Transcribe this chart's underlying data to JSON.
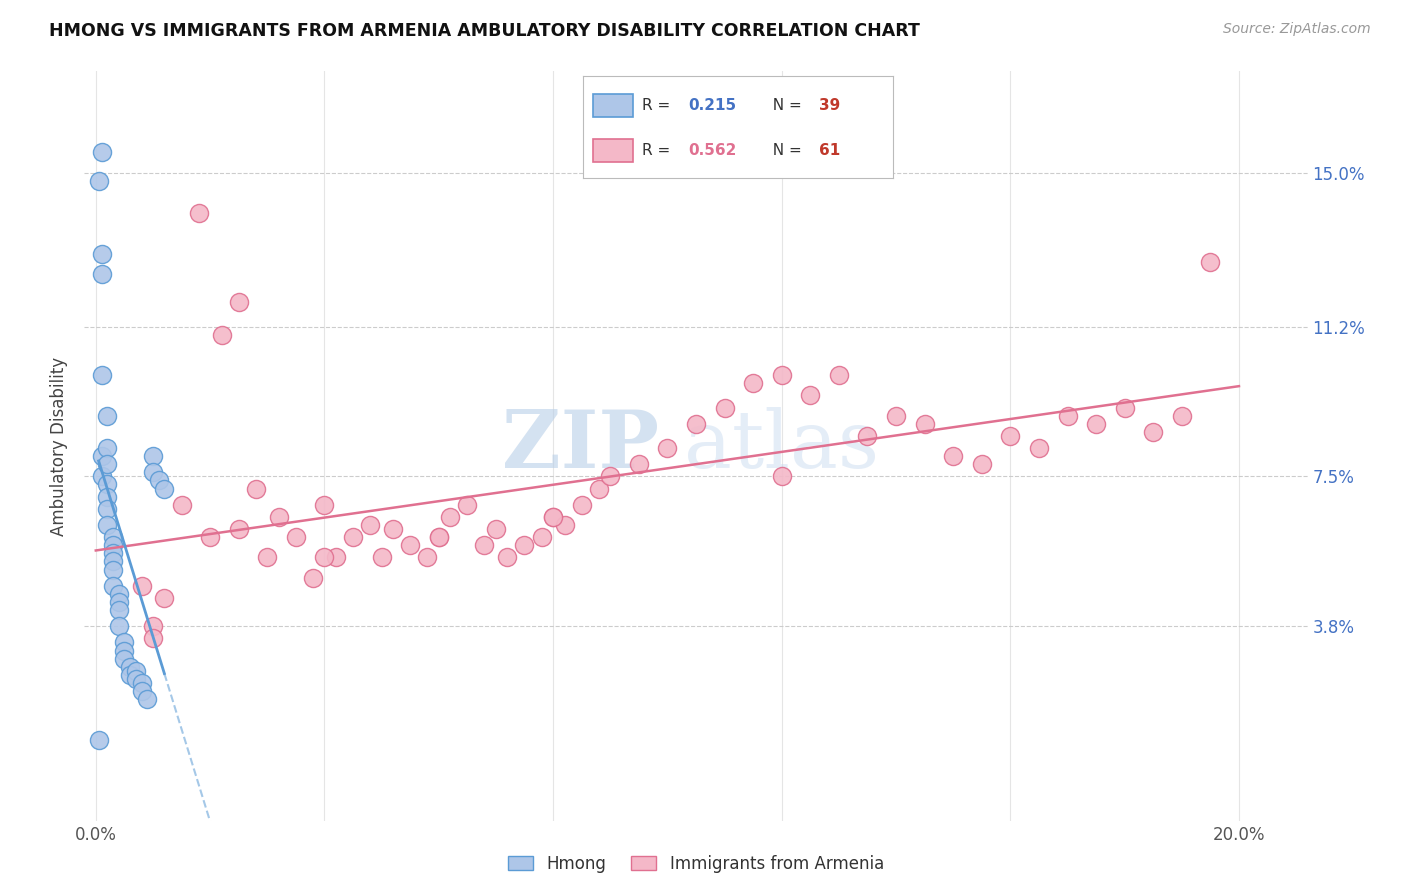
{
  "title": "HMONG VS IMMIGRANTS FROM ARMENIA AMBULATORY DISABILITY CORRELATION CHART",
  "source": "Source: ZipAtlas.com",
  "ylabel_label": "Ambulatory Disability",
  "y_tick_labels": [
    "3.8%",
    "7.5%",
    "11.2%",
    "15.0%"
  ],
  "y_tick_values": [
    0.038,
    0.075,
    0.112,
    0.15
  ],
  "xlim": [
    -0.002,
    0.212
  ],
  "ylim": [
    -0.01,
    0.175
  ],
  "hmong_color": "#aec6e8",
  "hmong_edge_color": "#5b9bd5",
  "armenia_color": "#f4b8c8",
  "armenia_edge_color": "#e07090",
  "hmong_R": "0.215",
  "hmong_N": "39",
  "armenia_R": "0.562",
  "armenia_N": "61",
  "legend_label_hmong": "Hmong",
  "legend_label_armenia": "Immigrants from Armenia",
  "watermark_zip": "ZIP",
  "watermark_atlas": "atlas",
  "background_color": "#ffffff",
  "grid_color": "#cccccc",
  "hmong_x": [
    0.001,
    0.001,
    0.001,
    0.001,
    0.001,
    0.001,
    0.002,
    0.002,
    0.002,
    0.002,
    0.002,
    0.002,
    0.002,
    0.003,
    0.003,
    0.003,
    0.003,
    0.003,
    0.003,
    0.004,
    0.004,
    0.004,
    0.004,
    0.005,
    0.005,
    0.005,
    0.006,
    0.006,
    0.007,
    0.007,
    0.008,
    0.008,
    0.009,
    0.01,
    0.01,
    0.011,
    0.012,
    0.0005,
    0.0005
  ],
  "hmong_y": [
    0.155,
    0.13,
    0.125,
    0.1,
    0.08,
    0.075,
    0.09,
    0.082,
    0.078,
    0.073,
    0.07,
    0.067,
    0.063,
    0.06,
    0.058,
    0.056,
    0.054,
    0.052,
    0.048,
    0.046,
    0.044,
    0.042,
    0.038,
    0.034,
    0.032,
    0.03,
    0.028,
    0.026,
    0.027,
    0.025,
    0.024,
    0.022,
    0.02,
    0.08,
    0.076,
    0.074,
    0.072,
    0.01,
    0.148
  ],
  "armenia_x": [
    0.008,
    0.01,
    0.012,
    0.015,
    0.018,
    0.02,
    0.022,
    0.025,
    0.028,
    0.03,
    0.032,
    0.035,
    0.038,
    0.04,
    0.042,
    0.045,
    0.048,
    0.05,
    0.052,
    0.055,
    0.058,
    0.06,
    0.062,
    0.065,
    0.068,
    0.07,
    0.072,
    0.075,
    0.078,
    0.08,
    0.082,
    0.085,
    0.088,
    0.09,
    0.095,
    0.1,
    0.105,
    0.11,
    0.115,
    0.12,
    0.125,
    0.13,
    0.135,
    0.14,
    0.145,
    0.15,
    0.155,
    0.16,
    0.165,
    0.17,
    0.175,
    0.18,
    0.185,
    0.19,
    0.01,
    0.025,
    0.04,
    0.06,
    0.08,
    0.12,
    0.195
  ],
  "armenia_y": [
    0.048,
    0.038,
    0.045,
    0.068,
    0.14,
    0.06,
    0.11,
    0.062,
    0.072,
    0.055,
    0.065,
    0.06,
    0.05,
    0.068,
    0.055,
    0.06,
    0.063,
    0.055,
    0.062,
    0.058,
    0.055,
    0.06,
    0.065,
    0.068,
    0.058,
    0.062,
    0.055,
    0.058,
    0.06,
    0.065,
    0.063,
    0.068,
    0.072,
    0.075,
    0.078,
    0.082,
    0.088,
    0.092,
    0.098,
    0.1,
    0.095,
    0.1,
    0.085,
    0.09,
    0.088,
    0.08,
    0.078,
    0.085,
    0.082,
    0.09,
    0.088,
    0.092,
    0.086,
    0.09,
    0.035,
    0.118,
    0.055,
    0.06,
    0.065,
    0.075,
    0.128
  ]
}
